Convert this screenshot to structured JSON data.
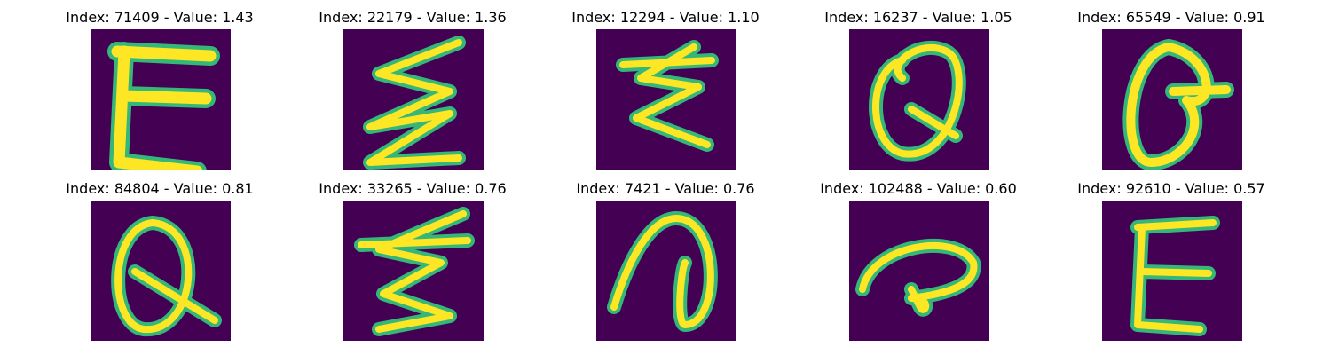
{
  "colors": {
    "background": "#440154",
    "stroke_edge": "#35b779",
    "stroke_core": "#fde725"
  },
  "cells": [
    {
      "title": "Index: 71409 - Value: 1.43",
      "glyph": "E"
    },
    {
      "title": "Index: 22179 - Value: 1.36",
      "glyph": "zigzag-E"
    },
    {
      "title": "Index: 12294 - Value: 1.10",
      "glyph": "script-E"
    },
    {
      "title": "Index: 16237 - Value: 1.05",
      "glyph": "Q"
    },
    {
      "title": "Index: 65549 - Value: 0.91",
      "glyph": "theta-like"
    },
    {
      "title": "Index: 84804 - Value: 0.81",
      "glyph": "Q"
    },
    {
      "title": "Index: 33265 - Value: 0.76",
      "glyph": "script-E"
    },
    {
      "title": "Index: 7421 - Value: 0.76",
      "glyph": "hook"
    },
    {
      "title": "Index: 102488 - Value: 0.60",
      "glyph": "curl"
    },
    {
      "title": "Index: 92610 - Value: 0.57",
      "glyph": "E"
    }
  ]
}
